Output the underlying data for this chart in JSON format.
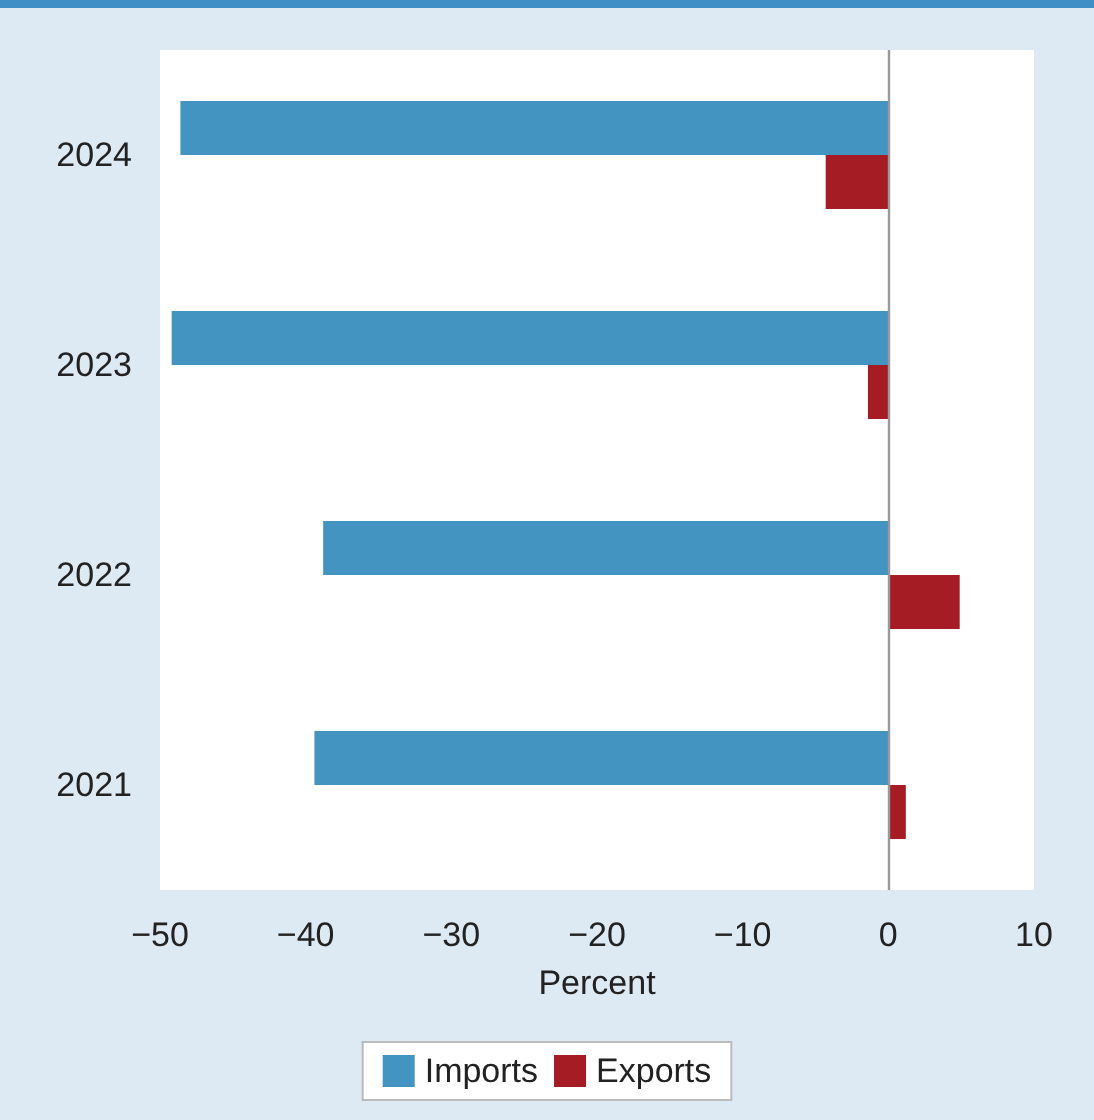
{
  "chart_data": {
    "type": "bar",
    "orientation": "horizontal",
    "categories": [
      "2024",
      "2023",
      "2022",
      "2021"
    ],
    "series": [
      {
        "name": "Imports",
        "color": "#4394c0",
        "values": [
          -48.6,
          -49.2,
          -38.8,
          -39.4
        ]
      },
      {
        "name": "Exports",
        "color": "#a51c24",
        "values": [
          -4.3,
          -1.4,
          4.9,
          1.2
        ]
      }
    ],
    "xlabel": "Percent",
    "xlim": [
      -50,
      10
    ],
    "xticks": [
      -50,
      -40,
      -30,
      -20,
      -10,
      0,
      10
    ],
    "grid": false,
    "legend": "bottom",
    "ref_lines": [
      {
        "axis": "x",
        "value": 0,
        "color": "#999999"
      }
    ]
  }
}
